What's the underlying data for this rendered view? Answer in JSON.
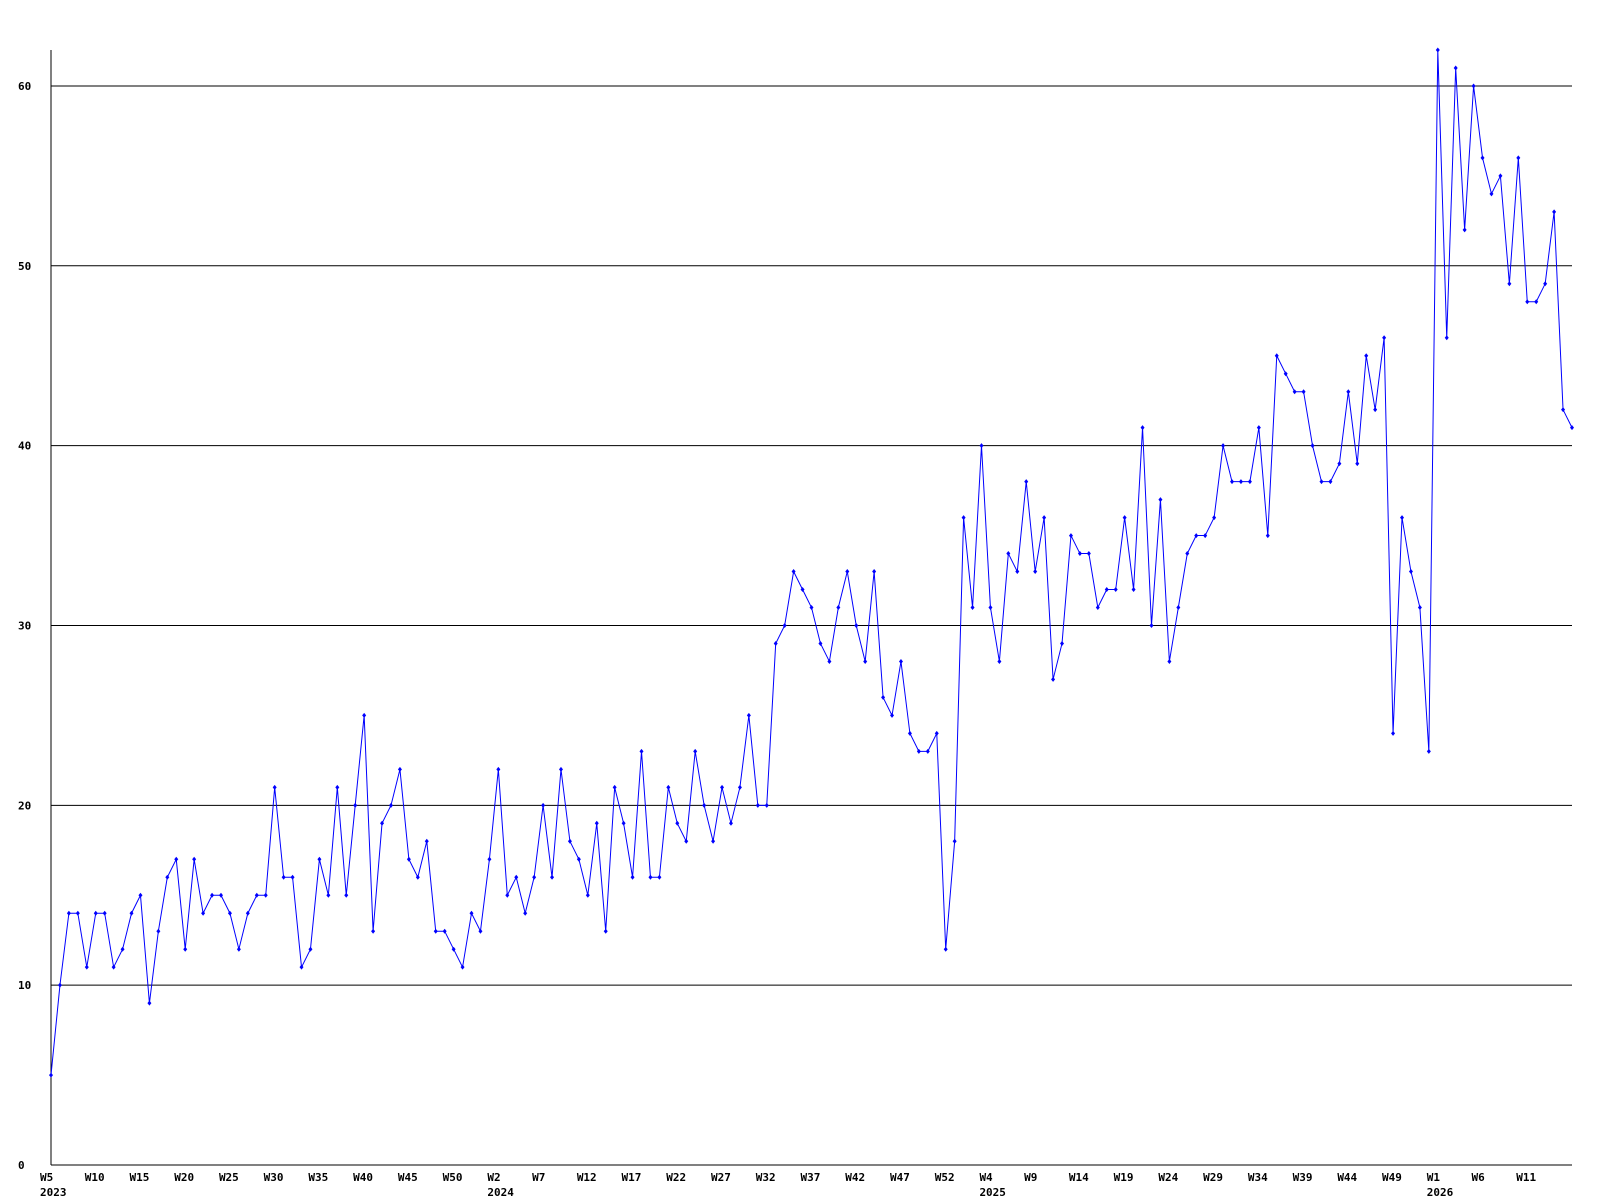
{
  "chart_data": {
    "type": "line",
    "categories": [
      "W5",
      null,
      null,
      null,
      null,
      "W10",
      null,
      null,
      null,
      null,
      "W15",
      null,
      null,
      null,
      null,
      "W20",
      null,
      null,
      null,
      null,
      "W25",
      null,
      null,
      null,
      null,
      "W30",
      null,
      null,
      null,
      null,
      "W35",
      null,
      null,
      null,
      null,
      "W40",
      null,
      null,
      null,
      null,
      "W45",
      null,
      null,
      null,
      null,
      "W50",
      null,
      null,
      null,
      null,
      "W2",
      null,
      null,
      null,
      null,
      "W7",
      null,
      null,
      null,
      null,
      "W12",
      null,
      null,
      null,
      null,
      "W17",
      null,
      null,
      null,
      null,
      "W22",
      null,
      null,
      null,
      null,
      "W27",
      null,
      null,
      null,
      null,
      "W32",
      null,
      null,
      null,
      null,
      "W37",
      null,
      null,
      null,
      null,
      "W42",
      null,
      null,
      null,
      null,
      "W47",
      null,
      null,
      null,
      null,
      "W52",
      null,
      null,
      null,
      null,
      "W4",
      null,
      null,
      null,
      null,
      "W9",
      null,
      null,
      null,
      null,
      "W14",
      null,
      null,
      null,
      null,
      "W19",
      null,
      null,
      null,
      null,
      "W24",
      null,
      null,
      null,
      null,
      "W29",
      null,
      null,
      null,
      null,
      "W34",
      null,
      null,
      null,
      null,
      "W39",
      null,
      null,
      null,
      null,
      "W44",
      null,
      null,
      null,
      null,
      "W49",
      null,
      null,
      null,
      null,
      "W1",
      null,
      null,
      null,
      null,
      "W6",
      null,
      null,
      null,
      null,
      "W11",
      null,
      null,
      null,
      null,
      null
    ],
    "years": [
      "2023",
      null,
      null,
      null,
      null,
      null,
      null,
      null,
      null,
      null,
      null,
      null,
      null,
      null,
      null,
      null,
      null,
      null,
      null,
      null,
      null,
      null,
      null,
      null,
      null,
      null,
      null,
      null,
      null,
      null,
      null,
      null,
      null,
      null,
      null,
      null,
      null,
      null,
      null,
      null,
      null,
      null,
      null,
      null,
      null,
      null,
      null,
      null,
      null,
      null,
      "2024",
      null,
      null,
      null,
      null,
      null,
      null,
      null,
      null,
      null,
      null,
      null,
      null,
      null,
      null,
      null,
      null,
      null,
      null,
      null,
      null,
      null,
      null,
      null,
      null,
      null,
      null,
      null,
      null,
      null,
      null,
      null,
      null,
      null,
      null,
      null,
      null,
      null,
      null,
      null,
      null,
      null,
      null,
      null,
      null,
      null,
      null,
      null,
      null,
      null,
      null,
      null,
      null,
      null,
      null,
      "2025",
      null,
      null,
      null,
      null,
      null,
      null,
      null,
      null,
      null,
      null,
      null,
      null,
      null,
      null,
      null,
      null,
      null,
      null,
      null,
      null,
      null,
      null,
      null,
      null,
      null,
      null,
      null,
      null,
      null,
      null,
      null,
      null,
      null,
      null,
      null,
      null,
      null,
      null,
      null,
      null,
      null,
      null,
      null,
      null,
      null,
      null,
      null,
      null,
      null,
      "2026",
      null,
      null,
      null,
      null,
      null,
      null,
      null,
      null,
      null,
      null,
      null,
      null,
      null,
      null,
      null
    ],
    "series": [
      {
        "color": "#0000ff",
        "values": [
          5,
          10,
          14,
          14,
          11,
          14,
          14,
          11,
          12,
          14,
          15,
          9,
          13,
          16,
          17,
          12,
          17,
          14,
          15,
          15,
          14,
          12,
          14,
          15,
          15,
          21,
          16,
          16,
          11,
          12,
          17,
          15,
          21,
          15,
          20,
          25,
          13,
          19,
          20,
          22,
          17,
          16,
          18,
          13,
          13,
          12,
          11,
          14,
          13,
          17,
          22,
          15,
          16,
          14,
          16,
          20,
          16,
          22,
          18,
          17,
          15,
          19,
          13,
          21,
          19,
          16,
          23,
          16,
          16,
          21,
          19,
          18,
          23,
          20,
          18,
          21,
          19,
          21,
          25,
          20,
          20,
          29,
          30,
          33,
          32,
          31,
          29,
          28,
          31,
          33,
          30,
          28,
          33,
          26,
          25,
          28,
          24,
          23,
          23,
          24,
          12,
          18,
          36,
          31,
          40,
          31,
          28,
          34,
          33,
          38,
          33,
          36,
          27,
          29,
          35,
          34,
          34,
          31,
          32,
          32,
          36,
          32,
          41,
          30,
          37,
          28,
          31,
          34,
          35,
          35,
          36,
          40,
          38,
          38,
          38,
          41,
          35,
          45,
          44,
          43,
          43,
          40,
          38,
          38,
          39,
          43,
          39,
          45,
          42,
          46,
          24,
          36,
          33,
          31,
          23,
          62,
          46,
          61,
          52,
          60,
          56,
          54,
          55,
          49,
          56,
          48,
          48,
          49,
          53,
          42,
          41
        ]
      }
    ],
    "ylim": [
      0,
      62
    ],
    "yticks": [
      0,
      10,
      20,
      30,
      40,
      50,
      60
    ],
    "grid": true
  }
}
